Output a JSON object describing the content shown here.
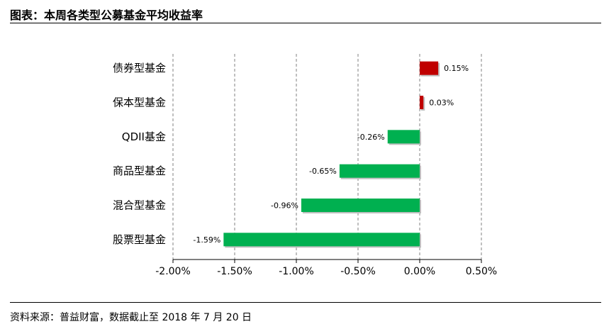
{
  "header": {
    "title": "图表：本周各类型公募基金平均收益率"
  },
  "footer": {
    "source": "资料来源：普益财富，数据截止至 2018 年 7 月 20 日"
  },
  "colors": {
    "positive": "#c00000",
    "negative": "#00b050",
    "grid": "#808080"
  },
  "chart_data": {
    "type": "bar",
    "orientation": "horizontal",
    "title": "",
    "xlabel": "",
    "ylabel": "",
    "categories": [
      "债券型基金",
      "保本型基金",
      "QDII基金",
      "商品型基金",
      "混合型基金",
      "股票型基金"
    ],
    "values": [
      0.15,
      0.03,
      -0.26,
      -0.65,
      -0.96,
      -1.59
    ],
    "value_labels": [
      "0.15%",
      "0.03%",
      "-0.26%",
      "-0.65%",
      "-0.96%",
      "-1.59%"
    ],
    "xlim": [
      -2.0,
      0.5
    ],
    "x_ticks": [
      -2.0,
      -1.5,
      -1.0,
      -0.5,
      0.0,
      0.5
    ],
    "x_tick_labels": [
      "-2.00%",
      "-1.50%",
      "-1.00%",
      "-0.50%",
      "0.00%",
      "0.50%"
    ],
    "grid": "vertical dashed",
    "legend": "none"
  }
}
